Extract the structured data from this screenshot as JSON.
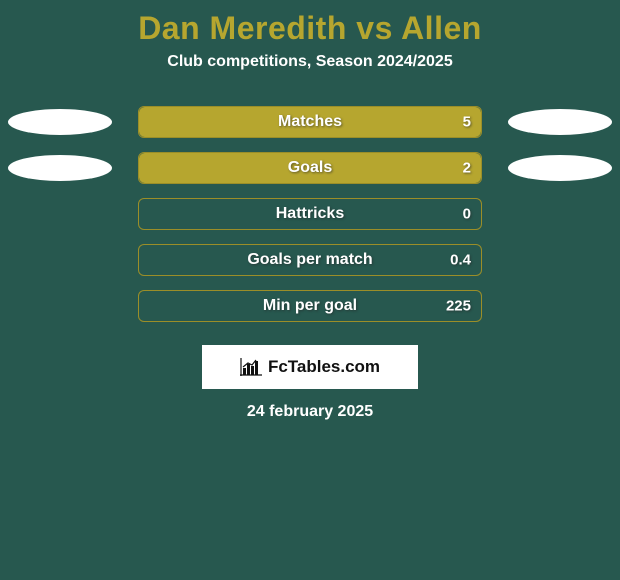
{
  "background_color": "#27584f",
  "title": {
    "text": "Dan Meredith vs Allen",
    "color": "#b6a62f",
    "fontsize": 32,
    "fontweight": 800
  },
  "subtitle": {
    "text": "Club competitions, Season 2024/2025",
    "color": "#ffffff",
    "fontsize": 16,
    "fontweight": 700
  },
  "ellipse_color": "#ffffff",
  "bar_defaults": {
    "track_color": "#27584f",
    "track_border": "#9b8e28",
    "fill_color": "#b6a62f",
    "label_color": "#ffffff",
    "value_color": "#ffffff",
    "height": 32,
    "border_radius": 6,
    "label_fontsize": 16,
    "value_fontsize": 15
  },
  "rows": [
    {
      "label": "Matches",
      "value": "5",
      "fill_pct": 100,
      "left_ellipse": true,
      "right_ellipse": true
    },
    {
      "label": "Goals",
      "value": "2",
      "fill_pct": 100,
      "left_ellipse": true,
      "right_ellipse": true
    },
    {
      "label": "Hattricks",
      "value": "0",
      "fill_pct": 0,
      "left_ellipse": false,
      "right_ellipse": false
    },
    {
      "label": "Goals per match",
      "value": "0.4",
      "fill_pct": 0,
      "left_ellipse": false,
      "right_ellipse": false
    },
    {
      "label": "Min per goal",
      "value": "225",
      "fill_pct": 0,
      "left_ellipse": false,
      "right_ellipse": false
    }
  ],
  "logo": {
    "box_bg": "#ffffff",
    "text": "FcTables.com",
    "text_color": "#111111",
    "bars_color": "#111111"
  },
  "date": {
    "text": "24 february 2025",
    "color": "#ffffff",
    "fontsize": 16,
    "fontweight": 700
  }
}
